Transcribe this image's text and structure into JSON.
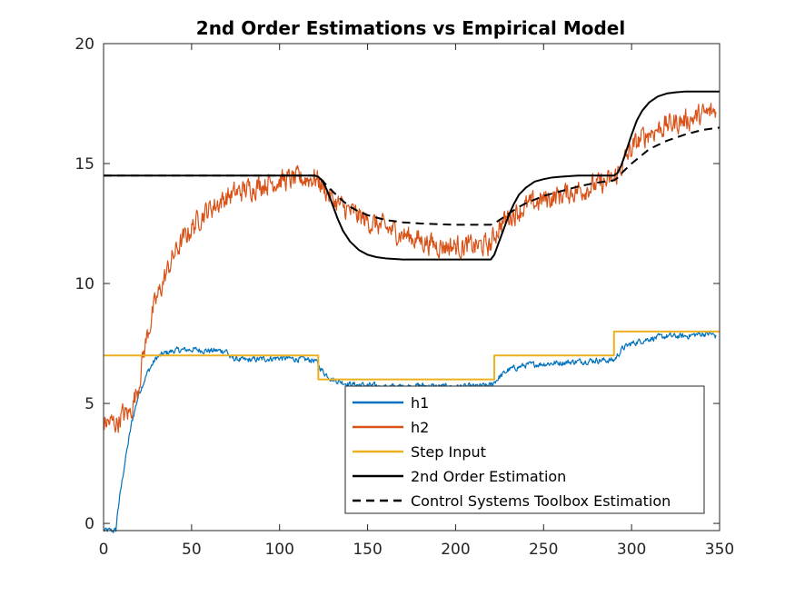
{
  "chart_data": {
    "type": "line",
    "title": "2nd Order Estimations vs Empirical Model",
    "xlabel": "",
    "ylabel": "",
    "xlim": [
      0,
      350
    ],
    "ylim": [
      -0.3,
      20
    ],
    "xticks": [
      0,
      50,
      100,
      150,
      200,
      250,
      300,
      350
    ],
    "yticks": [
      0,
      5,
      10,
      15,
      20
    ],
    "grid": false,
    "legend_location": "bottom-right",
    "series": [
      {
        "name": "h1",
        "color": "#0072BD",
        "style": "solid",
        "noisy": true,
        "noise_amp": 0.12,
        "x": [
          0,
          7,
          8,
          12,
          16,
          20,
          25,
          30,
          35,
          40,
          50,
          60,
          70,
          72,
          80,
          90,
          100,
          110,
          120,
          122,
          125,
          130,
          135,
          140,
          150,
          160,
          170,
          180,
          190,
          200,
          210,
          220,
          222,
          225,
          230,
          235,
          240,
          250,
          260,
          270,
          280,
          290,
          292,
          295,
          300,
          305,
          310,
          320,
          330,
          340,
          345,
          348
        ],
        "y": [
          -0.3,
          -0.3,
          0.5,
          2.5,
          4.2,
          5.4,
          6.3,
          6.9,
          7.1,
          7.2,
          7.25,
          7.2,
          7.2,
          6.9,
          6.8,
          6.85,
          6.9,
          6.85,
          6.8,
          6.6,
          6.3,
          6.0,
          5.9,
          5.8,
          5.75,
          5.7,
          5.7,
          5.75,
          5.7,
          5.7,
          5.7,
          5.75,
          5.9,
          6.1,
          6.4,
          6.5,
          6.6,
          6.65,
          6.7,
          6.75,
          6.8,
          6.8,
          7.0,
          7.3,
          7.5,
          7.6,
          7.7,
          7.8,
          7.8,
          7.9,
          7.9,
          7.8
        ]
      },
      {
        "name": "h2",
        "color": "#D95319",
        "style": "solid",
        "noisy": true,
        "noise_amp": 0.45,
        "x": [
          0,
          8,
          10,
          15,
          20,
          22,
          25,
          28,
          30,
          35,
          40,
          45,
          50,
          55,
          60,
          70,
          80,
          90,
          100,
          110,
          120,
          122,
          125,
          130,
          135,
          140,
          150,
          160,
          170,
          180,
          190,
          200,
          210,
          220,
          222,
          225,
          230,
          240,
          250,
          260,
          270,
          280,
          290,
          292,
          295,
          300,
          305,
          310,
          320,
          330,
          340,
          348
        ],
        "y": [
          4.2,
          4.2,
          4.5,
          4.6,
          5.8,
          6.8,
          7.9,
          8.8,
          9.3,
          10.3,
          11.2,
          11.8,
          12.3,
          12.8,
          13.1,
          13.6,
          13.9,
          14.15,
          14.3,
          14.35,
          14.4,
          14.3,
          14.0,
          13.5,
          13.2,
          13.0,
          12.6,
          12.3,
          12.05,
          11.8,
          11.6,
          11.55,
          11.55,
          11.6,
          12.0,
          12.4,
          12.8,
          13.2,
          13.5,
          13.7,
          13.9,
          14.1,
          14.3,
          14.6,
          15.0,
          15.6,
          16.0,
          16.3,
          16.6,
          16.8,
          17.0,
          17.2
        ]
      },
      {
        "name": "Step Input",
        "color": "#EDB120",
        "style": "solid",
        "noisy": false,
        "x": [
          0,
          122,
          122,
          222,
          222,
          290,
          290,
          350
        ],
        "y": [
          7,
          7,
          6,
          6,
          7,
          7,
          8,
          8
        ]
      },
      {
        "name": "2nd Order Estimation",
        "color": "#000000",
        "style": "solid",
        "noisy": false,
        "x": [
          0,
          120,
          122,
          124,
          126,
          128,
          130,
          133,
          136,
          140,
          145,
          150,
          155,
          160,
          170,
          180,
          190,
          200,
          210,
          220,
          222,
          224,
          226,
          228,
          230,
          233,
          236,
          240,
          245,
          250,
          255,
          260,
          270,
          280,
          290,
          292,
          294,
          296,
          298,
          300,
          303,
          306,
          310,
          315,
          320,
          325,
          330,
          340,
          350
        ],
        "y": [
          14.5,
          14.5,
          14.45,
          14.3,
          14.05,
          13.7,
          13.3,
          12.7,
          12.2,
          11.75,
          11.4,
          11.2,
          11.1,
          11.05,
          11.0,
          11.0,
          11.0,
          11.0,
          11.0,
          11.0,
          11.2,
          11.6,
          12.0,
          12.4,
          12.8,
          13.3,
          13.7,
          14.0,
          14.25,
          14.35,
          14.42,
          14.45,
          14.5,
          14.5,
          14.5,
          14.6,
          14.9,
          15.3,
          15.75,
          16.2,
          16.8,
          17.2,
          17.55,
          17.8,
          17.92,
          17.97,
          18.0,
          18.0,
          18.0
        ]
      },
      {
        "name": "Control Systems Toolbox Estimation",
        "color": "#000000",
        "style": "dashed",
        "noisy": false,
        "x": [
          0,
          120,
          123,
          126,
          130,
          135,
          140,
          145,
          150,
          160,
          170,
          180,
          190,
          200,
          210,
          220,
          222,
          225,
          230,
          235,
          240,
          245,
          250,
          260,
          270,
          280,
          290,
          292,
          295,
          300,
          305,
          310,
          320,
          330,
          340,
          350
        ],
        "y": [
          14.5,
          14.5,
          14.4,
          14.15,
          13.85,
          13.5,
          13.2,
          13.0,
          12.85,
          12.65,
          12.55,
          12.5,
          12.47,
          12.45,
          12.45,
          12.45,
          12.5,
          12.65,
          12.9,
          13.15,
          13.35,
          13.5,
          13.65,
          13.85,
          14.05,
          14.2,
          14.3,
          14.4,
          14.65,
          15.0,
          15.3,
          15.6,
          15.95,
          16.2,
          16.4,
          16.5
        ]
      }
    ]
  }
}
